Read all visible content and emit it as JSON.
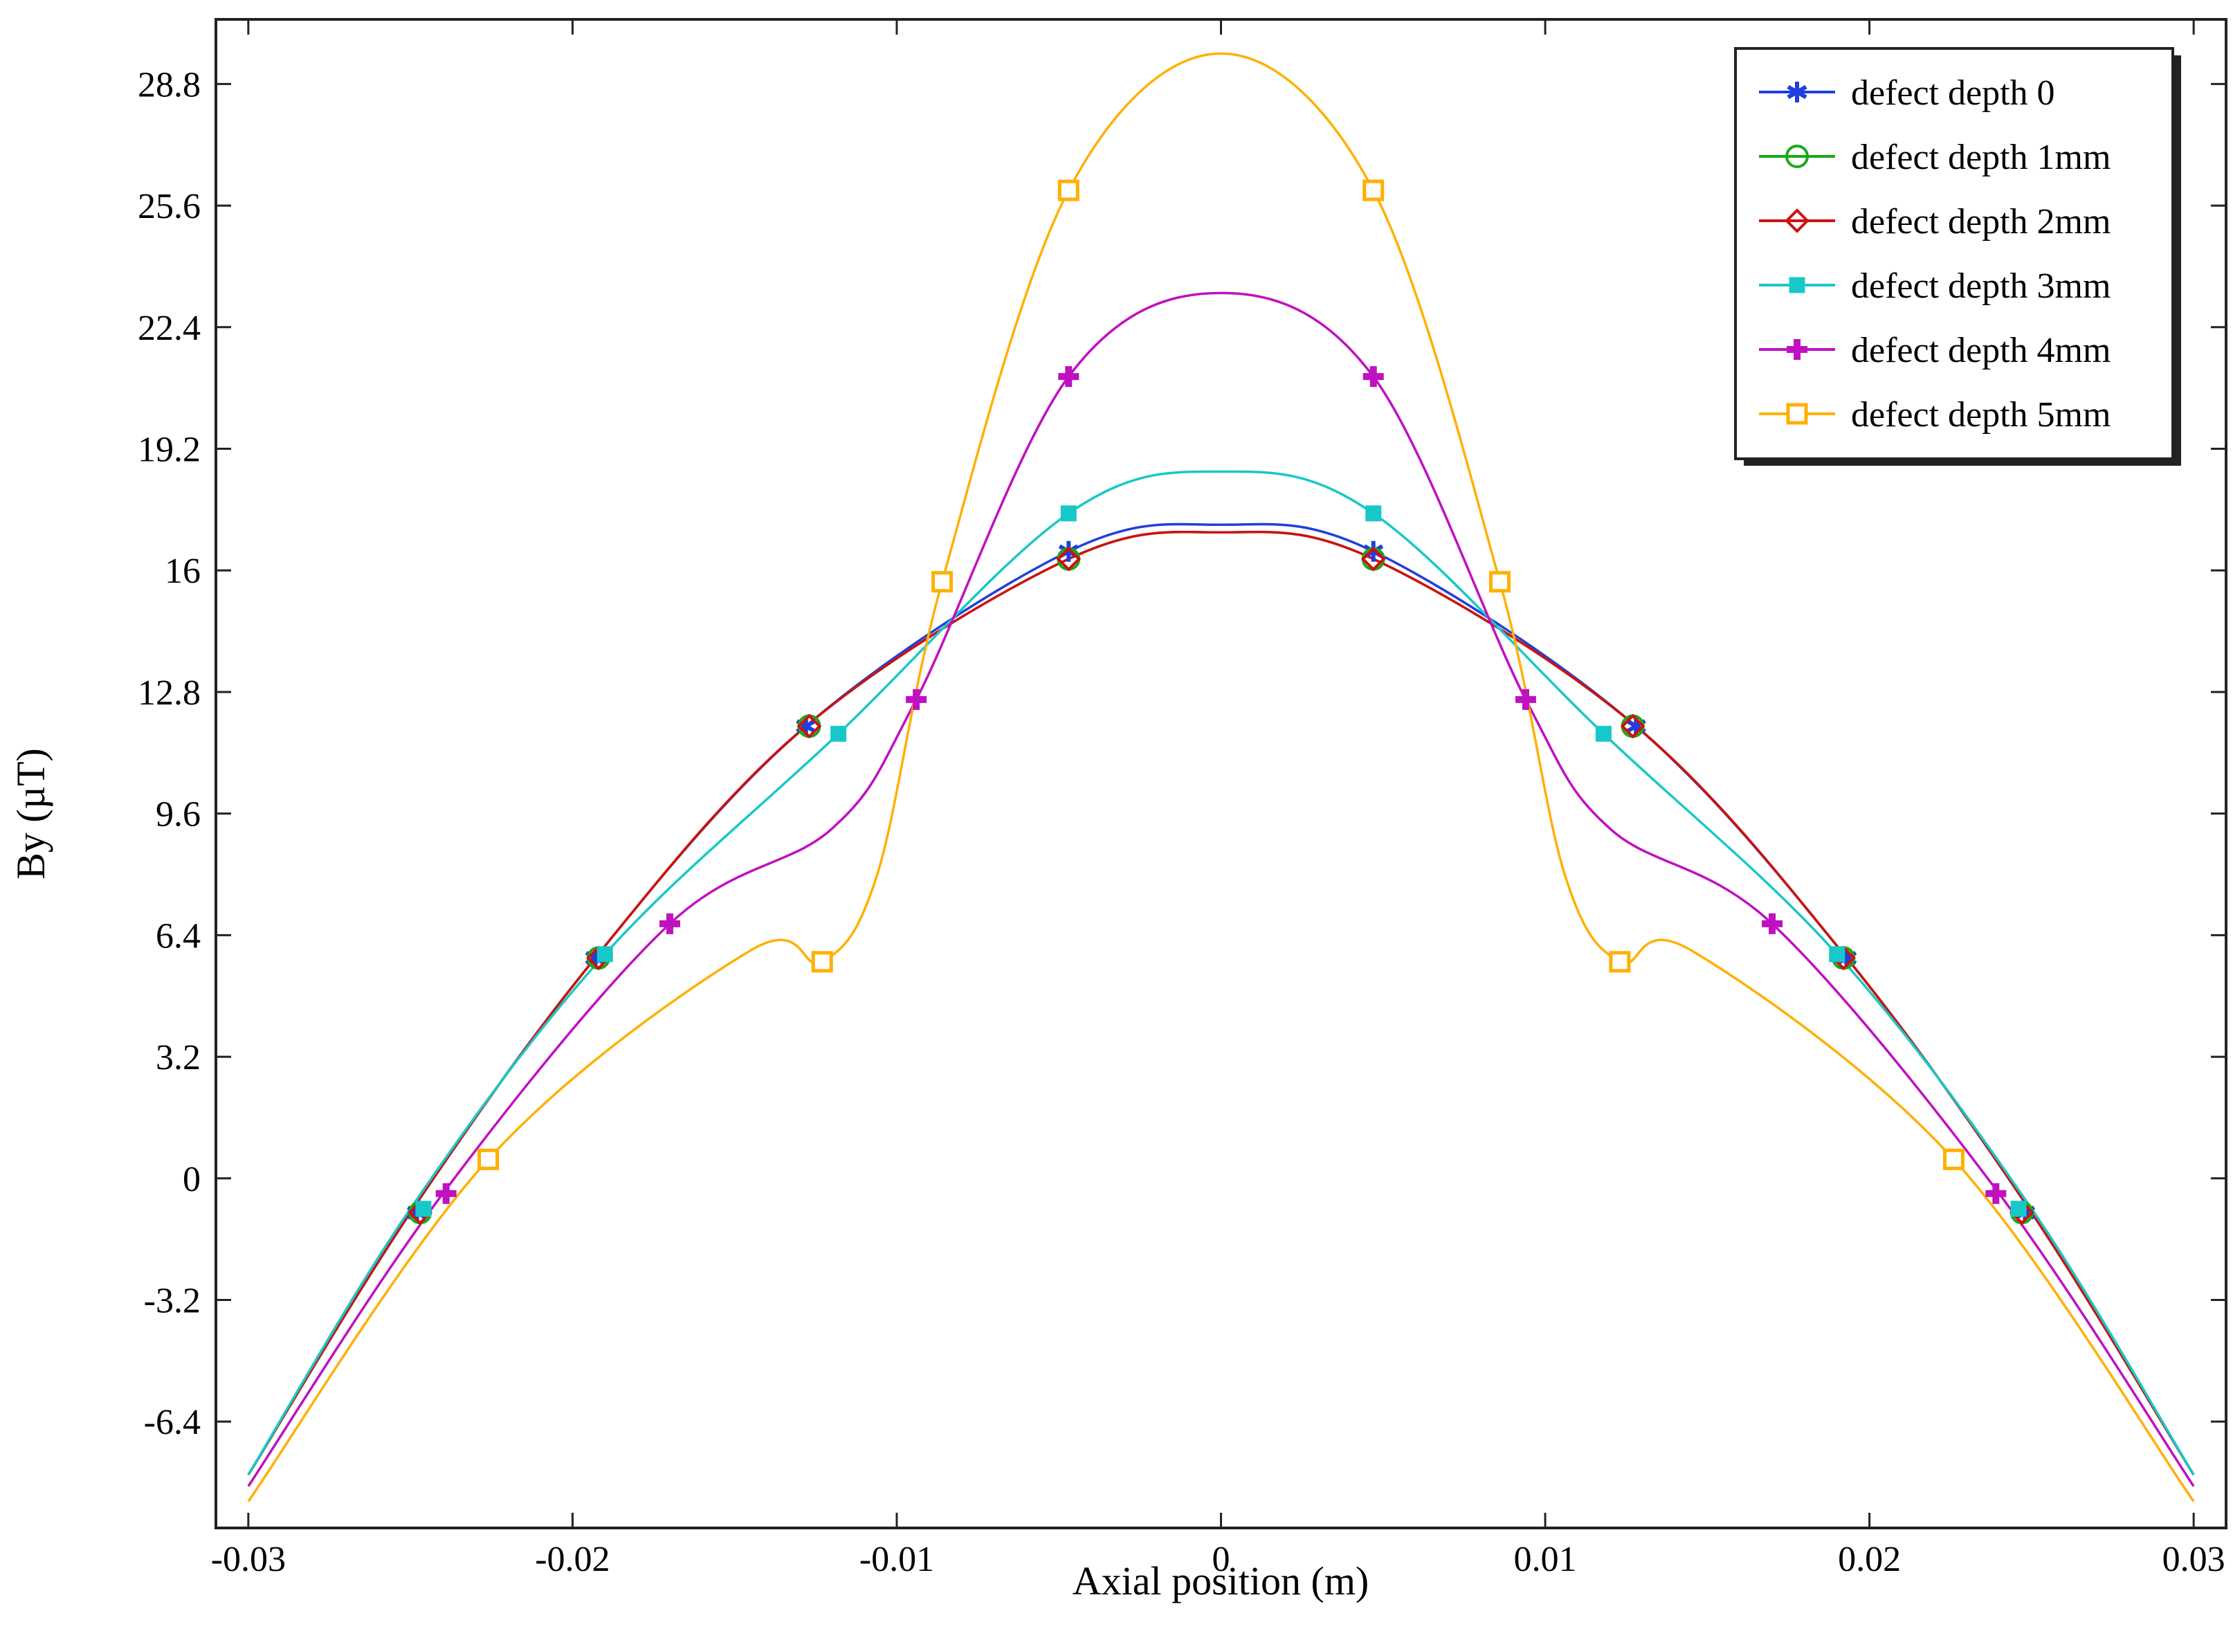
{
  "chart_data": {
    "type": "line",
    "xlabel": "Axial position (m)",
    "ylabel": "By (µT)",
    "xlim": [
      -0.031,
      0.031
    ],
    "ylim": [
      -9.2,
      30.5
    ],
    "xticks": [
      -0.03,
      -0.02,
      -0.01,
      0,
      0.01,
      0.02,
      0.03
    ],
    "xtick_labels": [
      "-0.03",
      "-0.02",
      "-0.01",
      "0",
      "0.01",
      "0.02",
      "0.03"
    ],
    "yticks": [
      -6.4,
      -3.2,
      0,
      3.2,
      6.4,
      9.6,
      12.8,
      16,
      19.2,
      22.4,
      25.6,
      28.8
    ],
    "ytick_labels": [
      "-6.4",
      "-3.2",
      "0",
      "3.2",
      "6.4",
      "9.6",
      "12.8",
      "16",
      "19.2",
      "22.4",
      "25.6",
      "28.8"
    ],
    "grid": false,
    "legend_position": "top-right",
    "series": [
      {
        "name": "defect depth 0",
        "color": "#1f3fdf",
        "marker": "asterisk",
        "points": [
          [
            -0.03,
            -7.8
          ],
          [
            -0.025,
            -0.9
          ],
          [
            -0.0193,
            5.8
          ],
          [
            -0.0128,
            11.9
          ],
          [
            -0.0047,
            16.5
          ],
          [
            0,
            17.2
          ],
          [
            0.0047,
            16.5
          ],
          [
            0.0128,
            11.9
          ],
          [
            0.0193,
            5.8
          ],
          [
            0.025,
            -0.9
          ],
          [
            0.03,
            -7.8
          ]
        ],
        "marker_points": [
          [
            -0.0248,
            -0.9
          ],
          [
            -0.0193,
            5.8
          ],
          [
            -0.0128,
            11.9
          ],
          [
            -0.0047,
            16.5
          ],
          [
            0.0047,
            16.5
          ],
          [
            0.0128,
            11.9
          ],
          [
            0.0193,
            5.8
          ],
          [
            0.0248,
            -0.9
          ]
        ]
      },
      {
        "name": "defect depth 1mm",
        "color": "#1aa81a",
        "marker": "circle",
        "points": [
          [
            -0.03,
            -7.8
          ],
          [
            -0.025,
            -0.9
          ],
          [
            -0.0193,
            5.8
          ],
          [
            -0.0128,
            11.9
          ],
          [
            -0.0047,
            16.3
          ],
          [
            0,
            17.0
          ],
          [
            0.0047,
            16.3
          ],
          [
            0.0128,
            11.9
          ],
          [
            0.0193,
            5.8
          ],
          [
            0.025,
            -0.9
          ],
          [
            0.03,
            -7.8
          ]
        ],
        "marker_points": [
          [
            -0.0247,
            -0.9
          ],
          [
            -0.0192,
            5.8
          ],
          [
            -0.0127,
            11.9
          ],
          [
            -0.0047,
            16.3
          ],
          [
            0.0047,
            16.3
          ],
          [
            0.0127,
            11.9
          ],
          [
            0.0192,
            5.8
          ],
          [
            0.0247,
            -0.9
          ]
        ]
      },
      {
        "name": "defect depth 2mm",
        "color": "#d01010",
        "marker": "diamond",
        "points": [
          [
            -0.03,
            -7.8
          ],
          [
            -0.025,
            -0.9
          ],
          [
            -0.0193,
            5.8
          ],
          [
            -0.0128,
            11.9
          ],
          [
            -0.0047,
            16.3
          ],
          [
            0,
            17.0
          ],
          [
            0.0047,
            16.3
          ],
          [
            0.0128,
            11.9
          ],
          [
            0.0193,
            5.8
          ],
          [
            0.025,
            -0.9
          ],
          [
            0.03,
            -7.8
          ]
        ],
        "marker_points": [
          [
            -0.0247,
            -0.9
          ],
          [
            -0.0192,
            5.8
          ],
          [
            -0.0127,
            11.9
          ],
          [
            -0.0047,
            16.3
          ],
          [
            0.0047,
            16.3
          ],
          [
            0.0127,
            11.9
          ],
          [
            0.0192,
            5.8
          ],
          [
            0.0247,
            -0.9
          ]
        ]
      },
      {
        "name": "defect depth 3mm",
        "color": "#18c8c8",
        "marker": "square-filled",
        "points": [
          [
            -0.03,
            -7.8
          ],
          [
            -0.025,
            -0.8
          ],
          [
            -0.019,
            5.9
          ],
          [
            -0.0118,
            11.7
          ],
          [
            -0.0047,
            17.5
          ],
          [
            0,
            18.6
          ],
          [
            0.0047,
            17.5
          ],
          [
            0.0118,
            11.7
          ],
          [
            0.019,
            5.9
          ],
          [
            0.025,
            -0.8
          ],
          [
            0.03,
            -7.8
          ]
        ],
        "marker_points": [
          [
            -0.0246,
            -0.8
          ],
          [
            -0.019,
            5.9
          ],
          [
            -0.0118,
            11.7
          ],
          [
            -0.0047,
            17.5
          ],
          [
            0.0047,
            17.5
          ],
          [
            0.0118,
            11.7
          ],
          [
            0.019,
            5.9
          ],
          [
            0.0246,
            -0.8
          ]
        ]
      },
      {
        "name": "defect depth 4mm",
        "color": "#c010c0",
        "marker": "plus",
        "points": [
          [
            -0.03,
            -8.1
          ],
          [
            -0.024,
            -0.4
          ],
          [
            -0.017,
            6.7
          ],
          [
            -0.012,
            9.2
          ],
          [
            -0.0094,
            12.6
          ],
          [
            -0.0047,
            21.1
          ],
          [
            0,
            23.3
          ],
          [
            0.0047,
            21.1
          ],
          [
            0.0094,
            12.6
          ],
          [
            0.012,
            9.2
          ],
          [
            0.017,
            6.7
          ],
          [
            0.024,
            -0.4
          ],
          [
            0.03,
            -8.1
          ]
        ],
        "marker_points": [
          [
            -0.0239,
            -0.4
          ],
          [
            -0.017,
            6.7
          ],
          [
            -0.0094,
            12.6
          ],
          [
            -0.0047,
            21.1
          ],
          [
            0.0047,
            21.1
          ],
          [
            0.0094,
            12.6
          ],
          [
            0.017,
            6.7
          ],
          [
            0.0239,
            -0.4
          ]
        ]
      },
      {
        "name": "defect depth 5mm",
        "color": "#ffb000",
        "marker": "square",
        "points": [
          [
            -0.03,
            -8.5
          ],
          [
            -0.0226,
            0.5
          ],
          [
            -0.0145,
            6.0
          ],
          [
            -0.0123,
            5.7
          ],
          [
            -0.0106,
            8.0
          ],
          [
            -0.0086,
            15.7
          ],
          [
            -0.0047,
            26.0
          ],
          [
            0,
            29.6
          ],
          [
            0.0047,
            26.0
          ],
          [
            0.0086,
            15.7
          ],
          [
            0.0106,
            8.0
          ],
          [
            0.0123,
            5.7
          ],
          [
            0.0145,
            6.0
          ],
          [
            0.0226,
            0.5
          ],
          [
            0.03,
            -8.5
          ]
        ],
        "marker_points": [
          [
            -0.0226,
            0.5
          ],
          [
            -0.0123,
            5.7
          ],
          [
            -0.0086,
            15.7
          ],
          [
            -0.0047,
            26.0
          ],
          [
            0.0047,
            26.0
          ],
          [
            0.0086,
            15.7
          ],
          [
            0.0123,
            5.7
          ],
          [
            0.0226,
            0.5
          ]
        ]
      }
    ]
  }
}
